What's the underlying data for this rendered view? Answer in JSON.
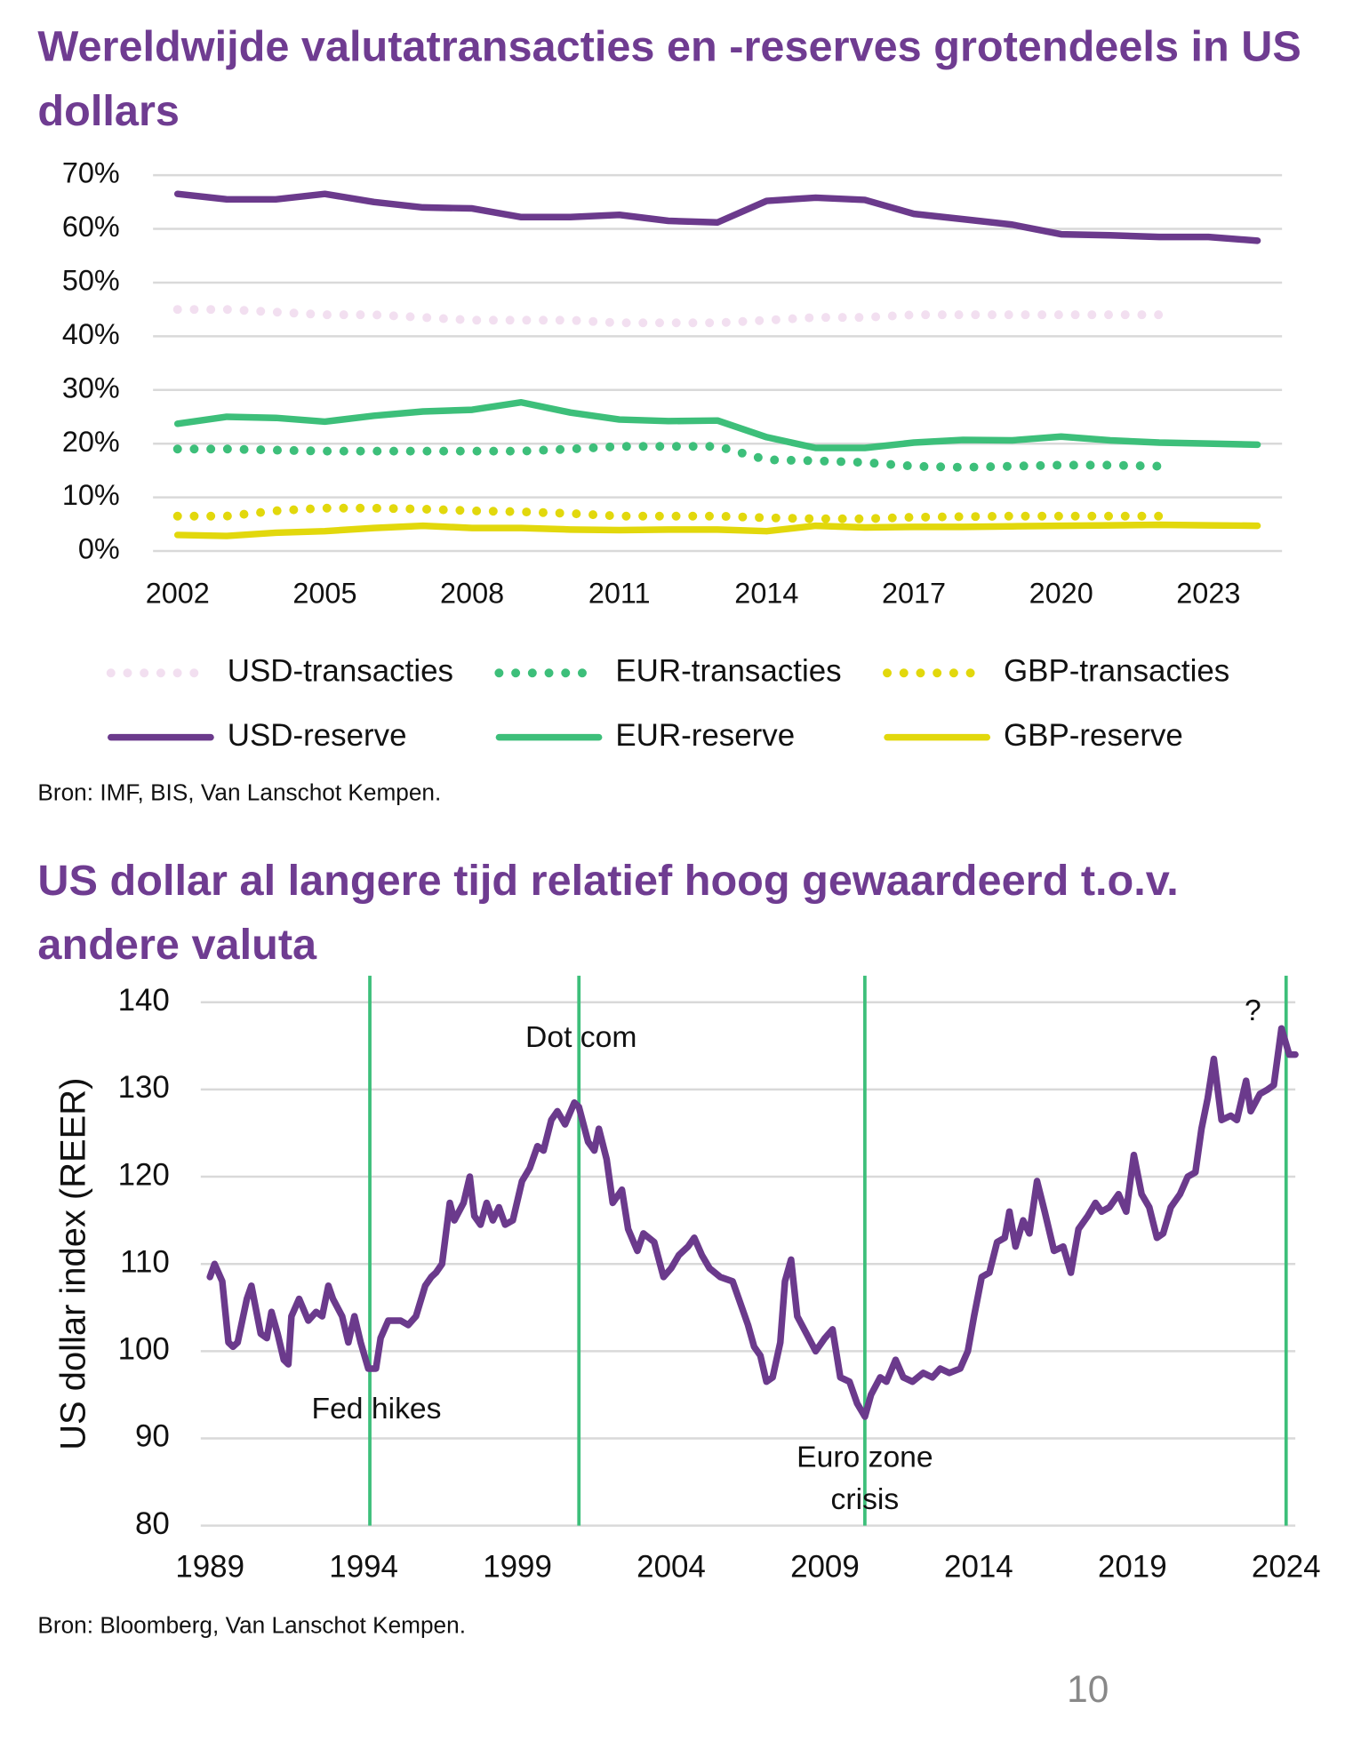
{
  "chart_data": [
    {
      "type": "line",
      "title": "Wereldwijde valutatransacties en -reserves grotendeels in US dollars",
      "source": "Bron: IMF, BIS, Van Lanschot Kempen.",
      "x": [
        2002,
        2003,
        2004,
        2005,
        2006,
        2007,
        2008,
        2009,
        2010,
        2011,
        2012,
        2013,
        2014,
        2015,
        2016,
        2017,
        2018,
        2019,
        2020,
        2021,
        2022,
        2023,
        2024
      ],
      "xlim": [
        2001.5,
        2024.5
      ],
      "xticks": [
        2002,
        2005,
        2008,
        2011,
        2014,
        2017,
        2020,
        2023
      ],
      "ylim": [
        0,
        70
      ],
      "yticks": [
        {
          "value": 0,
          "label": "0%"
        },
        {
          "value": 10,
          "label": "10%"
        },
        {
          "value": 20,
          "label": "20%"
        },
        {
          "value": 30,
          "label": "30%"
        },
        {
          "value": 40,
          "label": "40%"
        },
        {
          "value": 50,
          "label": "50%"
        },
        {
          "value": 60,
          "label": "60%"
        },
        {
          "value": 70,
          "label": "70%"
        }
      ],
      "grid": true,
      "legend": "bottom",
      "series": [
        {
          "name": "USD-transacties",
          "color": "#f2dff0",
          "style": "dotted",
          "values": [
            45,
            45,
            44.5,
            44,
            44,
            43.5,
            43,
            43,
            43,
            42.5,
            42.5,
            42.5,
            43,
            43.5,
            43.5,
            44,
            44,
            44,
            44,
            44,
            44,
            null,
            null
          ]
        },
        {
          "name": "EUR-transacties",
          "color": "#3dbf7a",
          "style": "dotted",
          "values": [
            19,
            19,
            18.8,
            18.6,
            18.6,
            18.6,
            18.6,
            18.6,
            19,
            19.5,
            19.5,
            19.5,
            17,
            16.8,
            16.5,
            15.8,
            15.6,
            15.8,
            16,
            16,
            15.8,
            null,
            null
          ]
        },
        {
          "name": "GBP-transacties",
          "color": "#e2d80c",
          "style": "dotted",
          "values": [
            6.5,
            6.5,
            7.5,
            8,
            8,
            7.8,
            7.5,
            7.3,
            7,
            6.5,
            6.5,
            6.5,
            6.2,
            6,
            6,
            6.3,
            6.4,
            6.5,
            6.5,
            6.5,
            6.5,
            null,
            null
          ]
        },
        {
          "name": "USD-reserve",
          "color": "#6b3a8c",
          "style": "solid",
          "values": [
            66.5,
            65.5,
            65.5,
            66.5,
            65,
            64,
            63.8,
            62.2,
            62.2,
            62.6,
            61.5,
            61.2,
            65.2,
            65.8,
            65.4,
            62.8,
            61.8,
            60.8,
            59,
            58.8,
            58.5,
            58.5,
            57.8
          ]
        },
        {
          "name": "EUR-reserve",
          "color": "#3dbf7a",
          "style": "solid",
          "values": [
            23.7,
            25,
            24.8,
            24.1,
            25.2,
            26,
            26.3,
            27.7,
            25.8,
            24.5,
            24.2,
            24.3,
            21.2,
            19.2,
            19.2,
            20.2,
            20.7,
            20.6,
            21.3,
            20.6,
            20.2,
            20,
            19.8
          ]
        },
        {
          "name": "GBP-reserve",
          "color": "#e2d80c",
          "style": "solid",
          "values": [
            3,
            2.8,
            3.4,
            3.7,
            4.3,
            4.7,
            4.3,
            4.3,
            4,
            3.9,
            4,
            4,
            3.7,
            4.7,
            4.4,
            4.5,
            4.5,
            4.6,
            4.7,
            4.8,
            4.9,
            4.8,
            4.7
          ]
        }
      ]
    },
    {
      "type": "line",
      "title": "US dollar al langere tijd relatief hoog gewaardeerd t.o.v. andere valuta",
      "source": "Bron: Bloomberg, Van Lanschot Kempen.",
      "ylabel": "US dollar index (REER)",
      "color": "#6b3a8c",
      "x": [
        1989.0,
        1989.15,
        1989.4,
        1989.6,
        1989.75,
        1989.9,
        1990.2,
        1990.35,
        1990.65,
        1990.85,
        1991.0,
        1991.2,
        1991.4,
        1991.55,
        1991.65,
        1991.9,
        1992.2,
        1992.45,
        1992.65,
        1992.85,
        1993.0,
        1993.3,
        1993.5,
        1993.7,
        1993.9,
        1994.15,
        1994.4,
        1994.55,
        1994.8,
        1995.2,
        1995.45,
        1995.7,
        1996.0,
        1996.2,
        1996.35,
        1996.55,
        1996.8,
        1996.95,
        1997.25,
        1997.45,
        1997.6,
        1997.8,
        1998.0,
        1998.2,
        1998.4,
        1998.6,
        1998.85,
        1999.15,
        1999.4,
        1999.65,
        1999.85,
        2000.1,
        2000.3,
        2000.55,
        2000.85,
        2001.0,
        2001.3,
        2001.5,
        2001.65,
        2001.9,
        2002.1,
        2002.4,
        2002.6,
        2002.9,
        2003.1,
        2003.45,
        2003.75,
        2004.0,
        2004.25,
        2004.55,
        2004.75,
        2005.0,
        2005.25,
        2005.6,
        2006.0,
        2006.2,
        2006.5,
        2006.7,
        2006.9,
        2007.1,
        2007.3,
        2007.55,
        2007.7,
        2007.9,
        2008.1,
        2008.4,
        2008.7,
        2009.0,
        2009.25,
        2009.5,
        2009.8,
        2010.05,
        2010.3,
        2010.5,
        2010.8,
        2011.0,
        2011.3,
        2011.55,
        2011.85,
        2012.2,
        2012.5,
        2012.75,
        2013.05,
        2013.4,
        2013.65,
        2013.85,
        2014.1,
        2014.35,
        2014.6,
        2014.85,
        2015.0,
        2015.2,
        2015.45,
        2015.65,
        2015.9,
        2016.15,
        2016.45,
        2016.75,
        2017.0,
        2017.25,
        2017.55,
        2017.8,
        2018.0,
        2018.25,
        2018.55,
        2018.8,
        2019.05,
        2019.3,
        2019.55,
        2019.8,
        2020.0,
        2020.25,
        2020.55,
        2020.8,
        2021.05,
        2021.25,
        2021.45,
        2021.65,
        2021.9,
        2022.2,
        2022.4,
        2022.7,
        2022.85,
        2023.15,
        2023.4,
        2023.6,
        2023.85,
        2024.1,
        2024.3
      ],
      "values": [
        108.5,
        110,
        108,
        101,
        100.5,
        101,
        106,
        107.5,
        102,
        101.5,
        104.5,
        102,
        99,
        98.5,
        104,
        106,
        103.5,
        104.5,
        104,
        107.5,
        106,
        104,
        101,
        104,
        101,
        98,
        98,
        101.5,
        103.5,
        103.5,
        103,
        104,
        107.5,
        108.5,
        109,
        110,
        117,
        115,
        117,
        120,
        115.5,
        114.5,
        117,
        115,
        116.5,
        114.5,
        115,
        119.5,
        121,
        123.5,
        123,
        126.5,
        127.5,
        126,
        128.5,
        128,
        124,
        123,
        125.5,
        122,
        117,
        118.5,
        114,
        111.5,
        113.5,
        112.5,
        108.5,
        109.5,
        111,
        112,
        113,
        111,
        109.5,
        108.5,
        108,
        106,
        103,
        100.5,
        99.5,
        96.5,
        97,
        101,
        108,
        110.5,
        104,
        102,
        100,
        101.5,
        102.5,
        97,
        96.5,
        94,
        92.5,
        95,
        97,
        96.5,
        99,
        97,
        96.5,
        97.5,
        97,
        98,
        97.5,
        98,
        100,
        104,
        108.5,
        109,
        112.5,
        113,
        116,
        112,
        115,
        113.5,
        119.5,
        116,
        111.5,
        112,
        109,
        114,
        115.5,
        117,
        116,
        116.5,
        118,
        116,
        122.5,
        118,
        116.5,
        113,
        113.5,
        116.5,
        118,
        120,
        120.5,
        125.5,
        129,
        133.5,
        126.5,
        127,
        126.5,
        131,
        127.5,
        129.5,
        130,
        130.5,
        137,
        134,
        134
      ],
      "xlim": [
        1988.7,
        2024.3
      ],
      "xticks": [
        1989,
        1994,
        1999,
        2004,
        2009,
        2014,
        2019,
        2024
      ],
      "ylim": [
        80,
        140
      ],
      "yticks": [
        80,
        90,
        100,
        110,
        120,
        130,
        140
      ],
      "grid": true,
      "event_color": "#3dbf7a",
      "annotations": [
        {
          "text": [
            "Fed hikes"
          ],
          "x": 1994.2
        },
        {
          "text": [
            "Dot com"
          ],
          "x": 2001.0
        },
        {
          "text": [
            "Euro zone",
            "crisis"
          ],
          "x": 2010.3
        },
        {
          "text": [
            "?"
          ],
          "x": 2024.0
        }
      ]
    }
  ],
  "page_number": "10"
}
